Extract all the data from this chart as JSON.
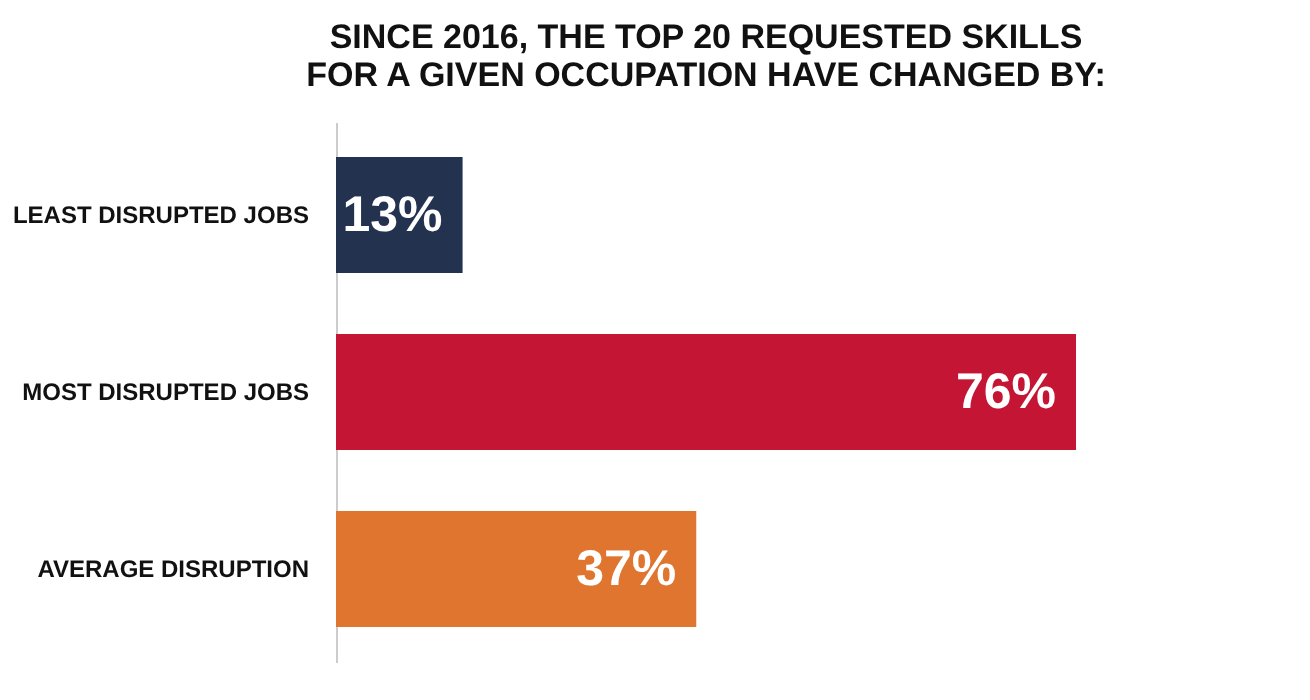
{
  "chart_data": {
    "type": "bar",
    "orientation": "horizontal",
    "title": "SINCE 2016, THE TOP 20 REQUESTED SKILLS\nFOR A GIVEN OCCUPATION HAVE CHANGED BY:",
    "categories": [
      "LEAST DISRUPTED JOBS",
      "MOST DISRUPTED JOBS",
      "AVERAGE DISRUPTION"
    ],
    "values": [
      13,
      76,
      37
    ],
    "colors": [
      "#22324f",
      "#c41534",
      "#e07530"
    ],
    "value_labels": [
      "13%",
      "76%",
      "37%"
    ],
    "tick_labels": "y"
  }
}
